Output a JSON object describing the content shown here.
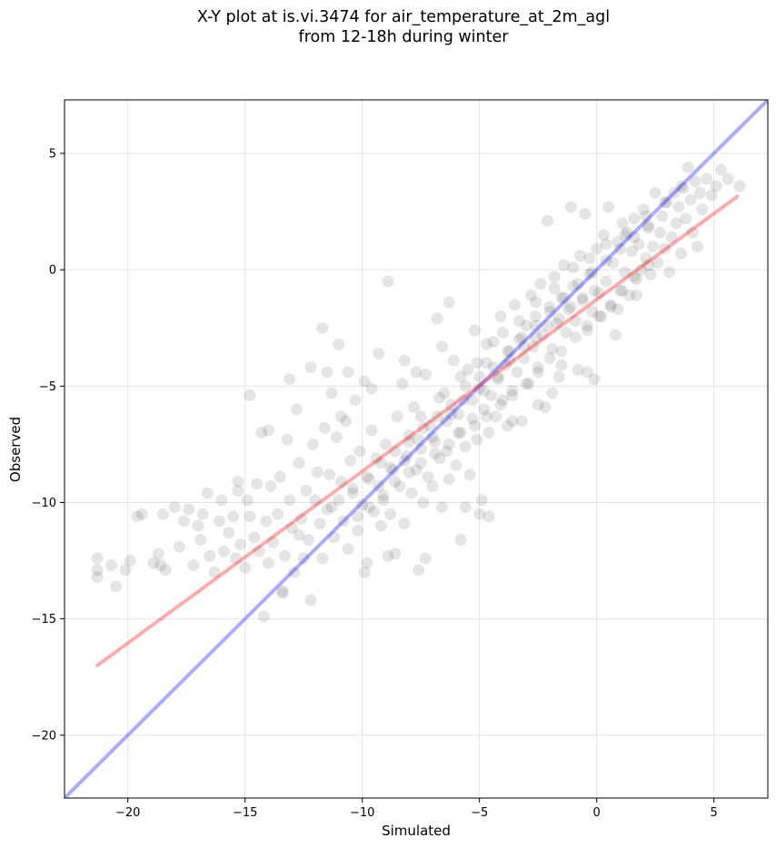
{
  "chart_data": {
    "type": "scatter",
    "title": "X-Y plot at is.vi.3474 for air_temperature_at_2m_agl",
    "subtitle": "from 12-18h during winter",
    "xlabel": "Simulated",
    "ylabel": "Observed",
    "xlim": [
      -22.7,
      7.3
    ],
    "ylim": [
      -22.7,
      7.3
    ],
    "xticks": [
      -20,
      -15,
      -10,
      -5,
      0,
      5
    ],
    "yticks": [
      -20,
      -15,
      -10,
      -5,
      0,
      5
    ],
    "x_tick_labels": [
      "−20",
      "−15",
      "−10",
      "−5",
      "0",
      "5"
    ],
    "y_tick_labels": [
      "−20",
      "−15",
      "−10",
      "−5",
      "0",
      "5"
    ],
    "grid": true,
    "lines": [
      {
        "color": "#0000ff",
        "opacity": 0.33,
        "points": [
          [
            -22.7,
            -22.7
          ],
          [
            7.3,
            7.3
          ]
        ]
      },
      {
        "color": "#ff0000",
        "opacity": 0.33,
        "points": [
          [
            -21.3,
            -17.0
          ],
          [
            6.0,
            3.15
          ]
        ]
      }
    ],
    "points": [
      [
        -21.3,
        -12.4
      ],
      [
        -21.3,
        -13.2
      ],
      [
        -21.3,
        -12.9
      ],
      [
        -20.7,
        -12.7
      ],
      [
        -20.5,
        -13.6
      ],
      [
        -20.1,
        -12.9
      ],
      [
        -19.9,
        -12.5
      ],
      [
        -19.4,
        -10.5
      ],
      [
        -18.9,
        -12.6
      ],
      [
        -18.7,
        -12.2
      ],
      [
        -18.6,
        -12.7
      ],
      [
        -18.5,
        -10.5
      ],
      [
        -18.4,
        -12.9
      ],
      [
        -18.0,
        -10.2
      ],
      [
        -17.6,
        -10.8
      ],
      [
        -17.4,
        -10.3
      ],
      [
        -17.2,
        -12.7
      ],
      [
        -17.0,
        -11.0
      ],
      [
        -16.8,
        -10.5
      ],
      [
        -16.6,
        -9.6
      ],
      [
        -16.5,
        -12.3
      ],
      [
        -16.3,
        -13.0
      ],
      [
        -16.1,
        -10.8
      ],
      [
        -16.0,
        -9.9
      ],
      [
        -15.9,
        -12.1
      ],
      [
        -15.7,
        -11.3
      ],
      [
        -15.5,
        -10.6
      ],
      [
        -15.4,
        -12.4
      ],
      [
        -15.3,
        -9.5
      ],
      [
        -15.2,
        -11.8
      ],
      [
        -15.0,
        -12.8
      ],
      [
        -14.9,
        -9.9
      ],
      [
        -14.8,
        -10.6
      ],
      [
        -14.8,
        -5.4
      ],
      [
        -14.6,
        -11.5
      ],
      [
        -14.5,
        -9.2
      ],
      [
        -14.4,
        -12.1
      ],
      [
        -14.3,
        -7.0
      ],
      [
        -14.2,
        -14.9
      ],
      [
        -14.1,
        -10.8
      ],
      [
        -14.0,
        -12.6
      ],
      [
        -13.9,
        -9.3
      ],
      [
        -13.8,
        -11.7
      ],
      [
        -13.6,
        -10.5
      ],
      [
        -13.5,
        -8.9
      ],
      [
        -13.4,
        -13.8
      ],
      [
        -13.3,
        -12.3
      ],
      [
        -13.2,
        -7.3
      ],
      [
        -13.1,
        -9.9
      ],
      [
        -13.0,
        -11.1
      ],
      [
        -12.9,
        -13.0
      ],
      [
        -12.8,
        -6.0
      ],
      [
        -12.7,
        -8.3
      ],
      [
        -12.6,
        -10.7
      ],
      [
        -12.5,
        -12.4
      ],
      [
        -12.4,
        -9.5
      ],
      [
        -12.3,
        -11.6
      ],
      [
        -12.2,
        -14.2
      ],
      [
        -12.1,
        -7.5
      ],
      [
        -12.0,
        -9.9
      ],
      [
        -11.9,
        -8.7
      ],
      [
        -11.8,
        -10.9
      ],
      [
        -11.7,
        -12.4
      ],
      [
        -11.6,
        -6.8
      ],
      [
        -11.5,
        -4.4
      ],
      [
        -11.4,
        -8.8
      ],
      [
        -11.3,
        -10.2
      ],
      [
        -11.2,
        -11.5
      ],
      [
        -11.1,
        -7.2
      ],
      [
        -11.0,
        -3.2
      ],
      [
        -10.9,
        -9.1
      ],
      [
        -10.8,
        -10.8
      ],
      [
        -10.7,
        -6.5
      ],
      [
        -10.6,
        -12.0
      ],
      [
        -10.5,
        -8.2
      ],
      [
        -10.4,
        -9.6
      ],
      [
        -10.3,
        -5.6
      ],
      [
        -10.2,
        -11.2
      ],
      [
        -10.1,
        -7.8
      ],
      [
        -10.0,
        -10.1
      ],
      [
        -9.9,
        -4.8
      ],
      [
        -9.8,
        -12.6
      ],
      [
        -9.7,
        -9.0
      ],
      [
        -9.6,
        -6.9
      ],
      [
        -9.5,
        -10.4
      ],
      [
        -9.4,
        -8.1
      ],
      [
        -9.3,
        -3.6
      ],
      [
        -9.2,
        -11.0
      ],
      [
        -9.1,
        -9.7
      ],
      [
        -9.0,
        -7.5
      ],
      [
        -8.9,
        -0.5
      ],
      [
        -8.8,
        -10.5
      ],
      [
        -8.7,
        -8.6
      ],
      [
        -8.6,
        -12.2
      ],
      [
        -8.5,
        -6.3
      ],
      [
        -8.4,
        -9.3
      ],
      [
        -8.3,
        -4.9
      ],
      [
        -8.2,
        -10.9
      ],
      [
        -8.1,
        -8.0
      ],
      [
        -8.0,
        -7.1
      ],
      [
        -7.9,
        -9.6
      ],
      [
        -7.8,
        -5.9
      ],
      [
        -7.7,
        -8.6
      ],
      [
        -7.6,
        -12.9
      ],
      [
        -7.5,
        -7.7
      ],
      [
        -7.4,
        -10.0
      ],
      [
        -7.3,
        -4.5
      ],
      [
        -7.2,
        -8.9
      ],
      [
        -7.1,
        -6.7
      ],
      [
        -7.0,
        -9.3
      ],
      [
        -6.9,
        -7.4
      ],
      [
        -6.8,
        -2.1
      ],
      [
        -6.7,
        -8.1
      ],
      [
        -6.6,
        -10.2
      ],
      [
        -6.5,
        -5.3
      ],
      [
        -6.4,
        -7.8
      ],
      [
        -6.3,
        -9.0
      ],
      [
        -6.2,
        -6.2
      ],
      [
        -6.1,
        -3.9
      ],
      [
        -6.0,
        -8.4
      ],
      [
        -5.9,
        -7.0
      ],
      [
        -5.8,
        -11.6
      ],
      [
        -5.7,
        -5.6
      ],
      [
        -5.6,
        -7.6
      ],
      [
        -5.5,
        -4.3
      ],
      [
        -5.4,
        -8.8
      ],
      [
        -5.3,
        -6.4
      ],
      [
        -5.2,
        -2.6
      ],
      [
        -5.1,
        -7.3
      ],
      [
        -5.0,
        -5.1
      ],
      [
        -4.9,
        -9.9
      ],
      [
        -4.8,
        -6.0
      ],
      [
        -4.7,
        -4.0
      ],
      [
        -4.6,
        -7.0
      ],
      [
        -4.5,
        -5.4
      ],
      [
        -4.4,
        -3.1
      ],
      [
        -4.3,
        -6.3
      ],
      [
        -4.2,
        -4.7
      ],
      [
        -4.1,
        -2.0
      ],
      [
        -4.0,
        -5.6
      ],
      [
        -3.9,
        -4.1
      ],
      [
        -3.8,
        -6.7
      ],
      [
        -3.7,
        -3.5
      ],
      [
        -3.6,
        -5.2
      ],
      [
        -3.5,
        -1.5
      ],
      [
        -3.4,
        -4.4
      ],
      [
        -3.3,
        -3.0
      ],
      [
        -3.2,
        -6.5
      ],
      [
        -3.1,
        -3.8
      ],
      [
        -3.0,
        -2.4
      ],
      [
        -2.9,
        -4.9
      ],
      [
        -2.8,
        -1.1
      ],
      [
        -2.7,
        -3.3
      ],
      [
        -2.6,
        -2.0
      ],
      [
        -2.5,
        -4.2
      ],
      [
        -2.4,
        -0.6
      ],
      [
        -2.3,
        -2.8
      ],
      [
        -2.2,
        -5.9
      ],
      [
        -2.1,
        2.1
      ],
      [
        -2.0,
        -1.6
      ],
      [
        -1.9,
        -3.4
      ],
      [
        -1.8,
        -0.3
      ],
      [
        -1.7,
        -2.3
      ],
      [
        -1.6,
        -4.6
      ],
      [
        -1.5,
        -1.2
      ],
      [
        -1.4,
        0.2
      ],
      [
        -1.3,
        -2.7
      ],
      [
        -1.2,
        -1.7
      ],
      [
        -1.1,
        2.7
      ],
      [
        -1.0,
        -0.7
      ],
      [
        -0.9,
        -2.2
      ],
      [
        -0.8,
        -4.3
      ],
      [
        -0.7,
        0.6
      ],
      [
        -0.6,
        -1.3
      ],
      [
        -0.5,
        2.4
      ],
      [
        -0.4,
        -2.6
      ],
      [
        -0.3,
        -0.2
      ],
      [
        -0.2,
        -1.8
      ],
      [
        -0.1,
        -4.7
      ],
      [
        0.0,
        0.9
      ],
      [
        0.1,
        -1.0
      ],
      [
        0.2,
        -2.0
      ],
      [
        0.3,
        1.5
      ],
      [
        0.4,
        -0.5
      ],
      [
        0.5,
        2.7
      ],
      [
        0.6,
        -1.6
      ],
      [
        0.7,
        0.3
      ],
      [
        0.8,
        -2.8
      ],
      [
        0.9,
        1.2
      ],
      [
        1.0,
        -0.9
      ],
      [
        1.1,
        2.0
      ],
      [
        1.2,
        -0.1
      ],
      [
        1.3,
        1.6
      ],
      [
        1.4,
        -1.1
      ],
      [
        1.5,
        0.8
      ],
      [
        1.6,
        2.2
      ],
      [
        1.7,
        -0.4
      ],
      [
        1.8,
        1.1
      ],
      [
        1.9,
        0.0
      ],
      [
        2.0,
        2.6
      ],
      [
        2.1,
        0.5
      ],
      [
        2.2,
        1.8
      ],
      [
        2.3,
        -0.2
      ],
      [
        2.4,
        1.0
      ],
      [
        2.5,
        3.3
      ],
      [
        2.6,
        0.3
      ],
      [
        2.7,
        1.6
      ],
      [
        2.8,
        2.3
      ],
      [
        2.9,
        0.9
      ],
      [
        3.0,
        2.9
      ],
      [
        3.1,
        -0.1
      ],
      [
        3.2,
        1.4
      ],
      [
        3.3,
        3.3
      ],
      [
        3.4,
        2.0
      ],
      [
        3.5,
        2.7
      ],
      [
        3.6,
        0.7
      ],
      [
        3.7,
        3.5
      ],
      [
        3.8,
        2.2
      ],
      [
        3.9,
        4.4
      ],
      [
        4.0,
        3.0
      ],
      [
        4.1,
        1.6
      ],
      [
        4.2,
        3.8
      ],
      [
        4.3,
        1.0
      ],
      [
        4.4,
        3.3
      ],
      [
        4.5,
        2.6
      ],
      [
        4.7,
        3.9
      ],
      [
        4.9,
        3.2
      ],
      [
        5.1,
        3.6
      ],
      [
        5.3,
        4.3
      ],
      [
        5.6,
        3.9
      ],
      [
        6.1,
        3.6
      ],
      [
        -10.9,
        -6.3
      ],
      [
        -9.6,
        -5.1
      ],
      [
        -8.2,
        -3.9
      ],
      [
        -7.7,
        -4.4
      ],
      [
        -6.6,
        -3.3
      ],
      [
        -6.3,
        -1.4
      ],
      [
        -12.2,
        -4.2
      ],
      [
        -11.7,
        -2.5
      ],
      [
        -13.1,
        -4.7
      ],
      [
        -14.0,
        -6.9
      ],
      [
        -11.3,
        -5.3
      ],
      [
        -10.6,
        -4.4
      ],
      [
        -15.3,
        -9.1
      ],
      [
        -16.9,
        -11.6
      ],
      [
        -17.8,
        -11.9
      ],
      [
        -19.6,
        -10.6
      ],
      [
        -13.4,
        -13.9
      ],
      [
        -12.7,
        -11.4
      ],
      [
        -8.9,
        -12.3
      ],
      [
        -9.9,
        -13.0
      ],
      [
        -7.3,
        -12.4
      ],
      [
        -5.6,
        -10.2
      ],
      [
        -5.0,
        -10.5
      ],
      [
        -4.6,
        -10.6
      ],
      [
        -3.6,
        -6.5
      ],
      [
        -2.5,
        -5.8
      ],
      [
        -1.9,
        -5.3
      ],
      [
        -1.5,
        -4.1
      ],
      [
        -0.4,
        -4.4
      ],
      [
        0.9,
        -1.7
      ],
      [
        1.7,
        -1.1
      ],
      [
        -7.5,
        -6.3
      ],
      [
        -6.7,
        -5.5
      ],
      [
        -5.8,
        -4.6
      ],
      [
        -5.1,
        -4.0
      ],
      [
        -4.7,
        -3.2
      ],
      [
        -4.0,
        -2.7
      ],
      [
        -3.3,
        -2.2
      ],
      [
        -2.6,
        -1.4
      ],
      [
        -1.8,
        -0.8
      ],
      [
        -1.0,
        0.1
      ],
      [
        -0.3,
        0.5
      ],
      [
        0.4,
        1.1
      ],
      [
        1.2,
        1.5
      ],
      [
        2.1,
        2.3
      ],
      [
        2.9,
        2.9
      ],
      [
        3.6,
        3.6
      ],
      [
        -9.3,
        -9.3
      ],
      [
        -8.8,
        -8.5
      ],
      [
        -8.2,
        -8.2
      ],
      [
        -7.6,
        -7.3
      ],
      [
        -7.0,
        -7.2
      ],
      [
        -6.4,
        -6.5
      ],
      [
        -5.9,
        -6.2
      ],
      [
        -5.3,
        -5.6
      ],
      [
        -4.8,
        -5.2
      ],
      [
        -4.2,
        -4.6
      ],
      [
        -3.7,
        -3.9
      ],
      [
        -3.1,
        -3.3
      ],
      [
        -2.6,
        -2.9
      ],
      [
        -2.1,
        -2.4
      ],
      [
        -1.6,
        -2.1
      ],
      [
        -1.1,
        -1.6
      ],
      [
        -0.6,
        -1.2
      ],
      [
        -0.1,
        -0.9
      ],
      [
        -10.2,
        -10.6
      ],
      [
        -9.7,
        -10.2
      ],
      [
        -9.1,
        -9.9
      ],
      [
        -8.6,
        -9.1
      ],
      [
        -8.0,
        -8.7
      ],
      [
        -7.5,
        -8.3
      ],
      [
        -6.9,
        -7.9
      ],
      [
        -6.3,
        -7.5
      ],
      [
        -5.8,
        -7.0
      ],
      [
        -5.2,
        -6.7
      ],
      [
        -4.7,
        -6.3
      ],
      [
        -4.1,
        -5.8
      ],
      [
        -3.6,
        -5.4
      ],
      [
        -3.0,
        -4.9
      ],
      [
        -2.5,
        -4.4
      ],
      [
        -2.0,
        -3.8
      ],
      [
        -1.5,
        -3.5
      ],
      [
        -0.9,
        -2.9
      ],
      [
        -0.4,
        -2.4
      ],
      [
        0.1,
        -2.0
      ],
      [
        0.6,
        -1.5
      ],
      [
        1.1,
        -0.9
      ],
      [
        1.6,
        -0.3
      ],
      [
        2.2,
        0.2
      ],
      [
        -11.5,
        -10.3
      ],
      [
        -11.0,
        -9.9
      ],
      [
        -10.4,
        -9.4
      ],
      [
        -9.8,
        -8.9
      ],
      [
        -9.2,
        -8.3
      ],
      [
        -8.6,
        -7.8
      ],
      [
        -8.0,
        -7.4
      ],
      [
        -7.4,
        -6.8
      ],
      [
        -6.8,
        -6.3
      ],
      [
        -6.2,
        -5.8
      ],
      [
        -5.6,
        -5.0
      ],
      [
        -5.0,
        -4.6
      ],
      [
        -4.4,
        -4.2
      ],
      [
        -3.8,
        -3.5
      ],
      [
        -3.2,
        -2.9
      ],
      [
        -2.6,
        -2.4
      ],
      [
        -2.0,
        -1.8
      ],
      [
        -1.4,
        -1.2
      ],
      [
        -0.8,
        -0.6
      ],
      [
        -0.2,
        -0.1
      ],
      [
        0.4,
        0.4
      ],
      [
        1.0,
        0.9
      ],
      [
        1.6,
        1.4
      ],
      [
        2.2,
        1.9
      ]
    ]
  }
}
